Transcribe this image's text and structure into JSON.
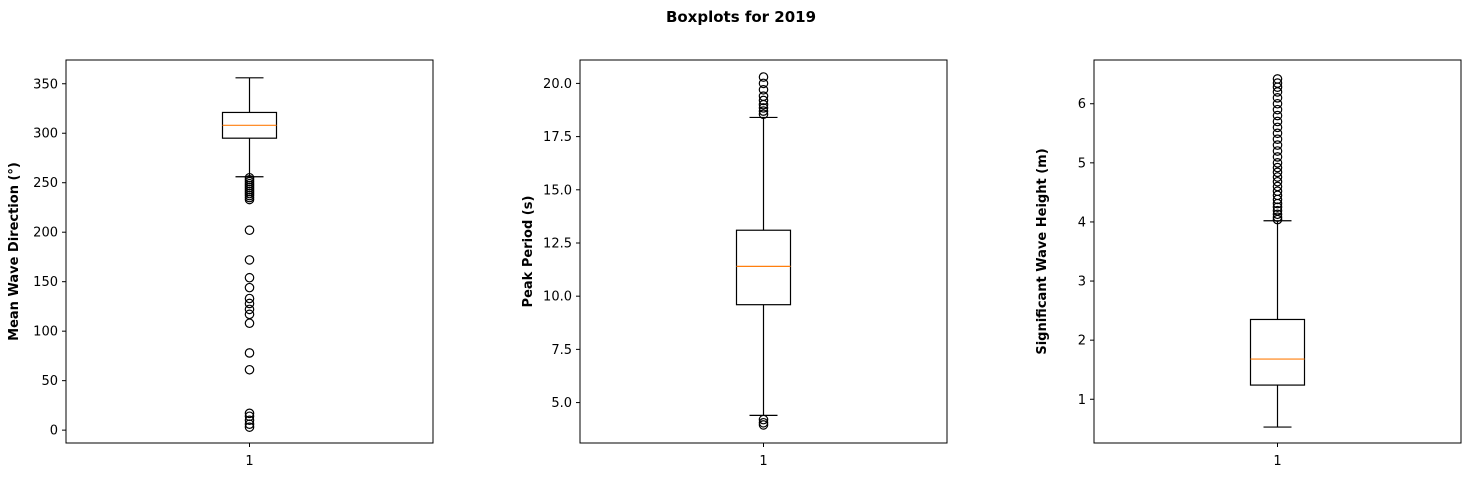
{
  "title": "Boxplots for 2019",
  "chart_data": [
    {
      "type": "boxplot",
      "ylabel": "Mean Wave Direction (°)",
      "xticks": [
        "1"
      ],
      "ylim": [
        -13,
        374
      ],
      "yticks": [
        0,
        50,
        100,
        150,
        200,
        250,
        300,
        350
      ],
      "ytick_labels": [
        "0",
        "50",
        "100",
        "150",
        "200",
        "250",
        "300",
        "350"
      ],
      "box": {
        "whisker_low": 256,
        "q1": 295,
        "median": 308,
        "q3": 321,
        "whisker_high": 356
      },
      "outliers": [
        255,
        253,
        251,
        249,
        247,
        245,
        243,
        241,
        239,
        237,
        235,
        233,
        202,
        172,
        154,
        144,
        133,
        128,
        122,
        117,
        108,
        78,
        61,
        17,
        14,
        10,
        6,
        3
      ]
    },
    {
      "type": "boxplot",
      "ylabel": "Peak Period (s)",
      "xticks": [
        "1"
      ],
      "ylim": [
        3.1,
        21.1
      ],
      "yticks": [
        5.0,
        7.5,
        10.0,
        12.5,
        15.0,
        17.5,
        20.0
      ],
      "ytick_labels": [
        "5.0",
        "7.5",
        "10.0",
        "12.5",
        "15.0",
        "17.5",
        "20.0"
      ],
      "box": {
        "whisker_low": 4.4,
        "q1": 9.6,
        "median": 11.4,
        "q3": 13.1,
        "whisker_high": 18.4
      },
      "outliers": [
        20.3,
        20.0,
        19.7,
        19.4,
        19.2,
        19.0,
        18.85,
        18.7,
        18.55,
        4.2,
        4.05,
        3.95
      ]
    },
    {
      "type": "boxplot",
      "ylabel": "Significant Wave Height (m)",
      "xticks": [
        "1"
      ],
      "ylim": [
        0.26,
        6.74
      ],
      "yticks": [
        1,
        2,
        3,
        4,
        5,
        6
      ],
      "ytick_labels": [
        "1",
        "2",
        "3",
        "4",
        "5",
        "6"
      ],
      "box": {
        "whisker_low": 0.53,
        "q1": 1.24,
        "median": 1.68,
        "q3": 2.35,
        "whisker_high": 4.02
      },
      "outliers": [
        6.42,
        6.35,
        6.28,
        6.2,
        6.1,
        6.0,
        5.9,
        5.8,
        5.7,
        5.6,
        5.5,
        5.4,
        5.3,
        5.2,
        5.1,
        5.0,
        4.92,
        4.84,
        4.76,
        4.68,
        4.6,
        4.52,
        4.45,
        4.38,
        4.31,
        4.25,
        4.19,
        4.13,
        4.08,
        4.04
      ]
    }
  ]
}
